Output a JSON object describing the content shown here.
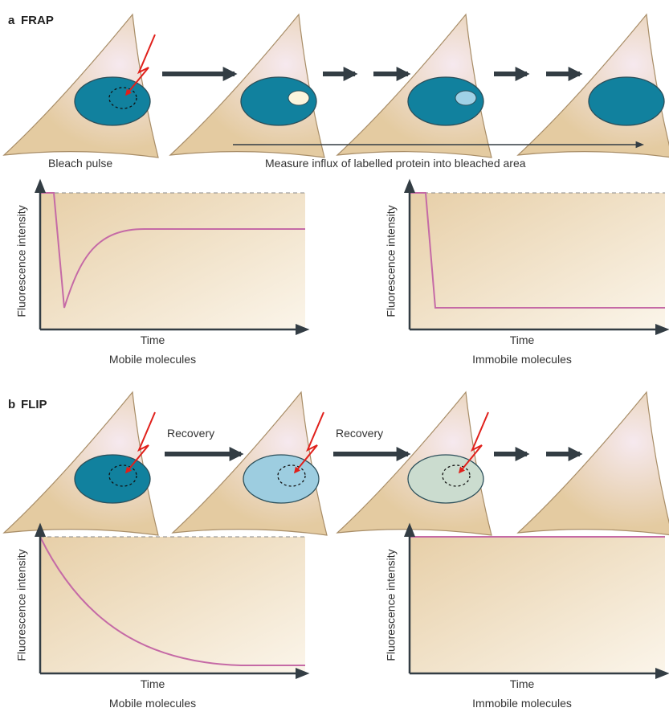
{
  "panels": [
    {
      "label": "a",
      "title": "FRAP",
      "step_label": "Bleach pulse",
      "measure_label": "Measure influx of labelled protein into bleached area",
      "graphs": [
        {
          "y_label": "Fluorescence intensity",
          "x_label": "Time",
          "caption": "Mobile molecules"
        },
        {
          "y_label": "Fluorescence intensity",
          "x_label": "Time",
          "caption": "Immobile molecules"
        }
      ]
    },
    {
      "label": "b",
      "title": "FLIP",
      "arrow_labels": [
        "Recovery",
        "Recovery"
      ],
      "graphs": [
        {
          "y_label": "Fluorescence intensity",
          "x_label": "Time",
          "caption": "Mobile molecules"
        },
        {
          "y_label": "Fluorescence intensity",
          "x_label": "Time",
          "caption": "Immobile molecules"
        }
      ]
    }
  ]
}
